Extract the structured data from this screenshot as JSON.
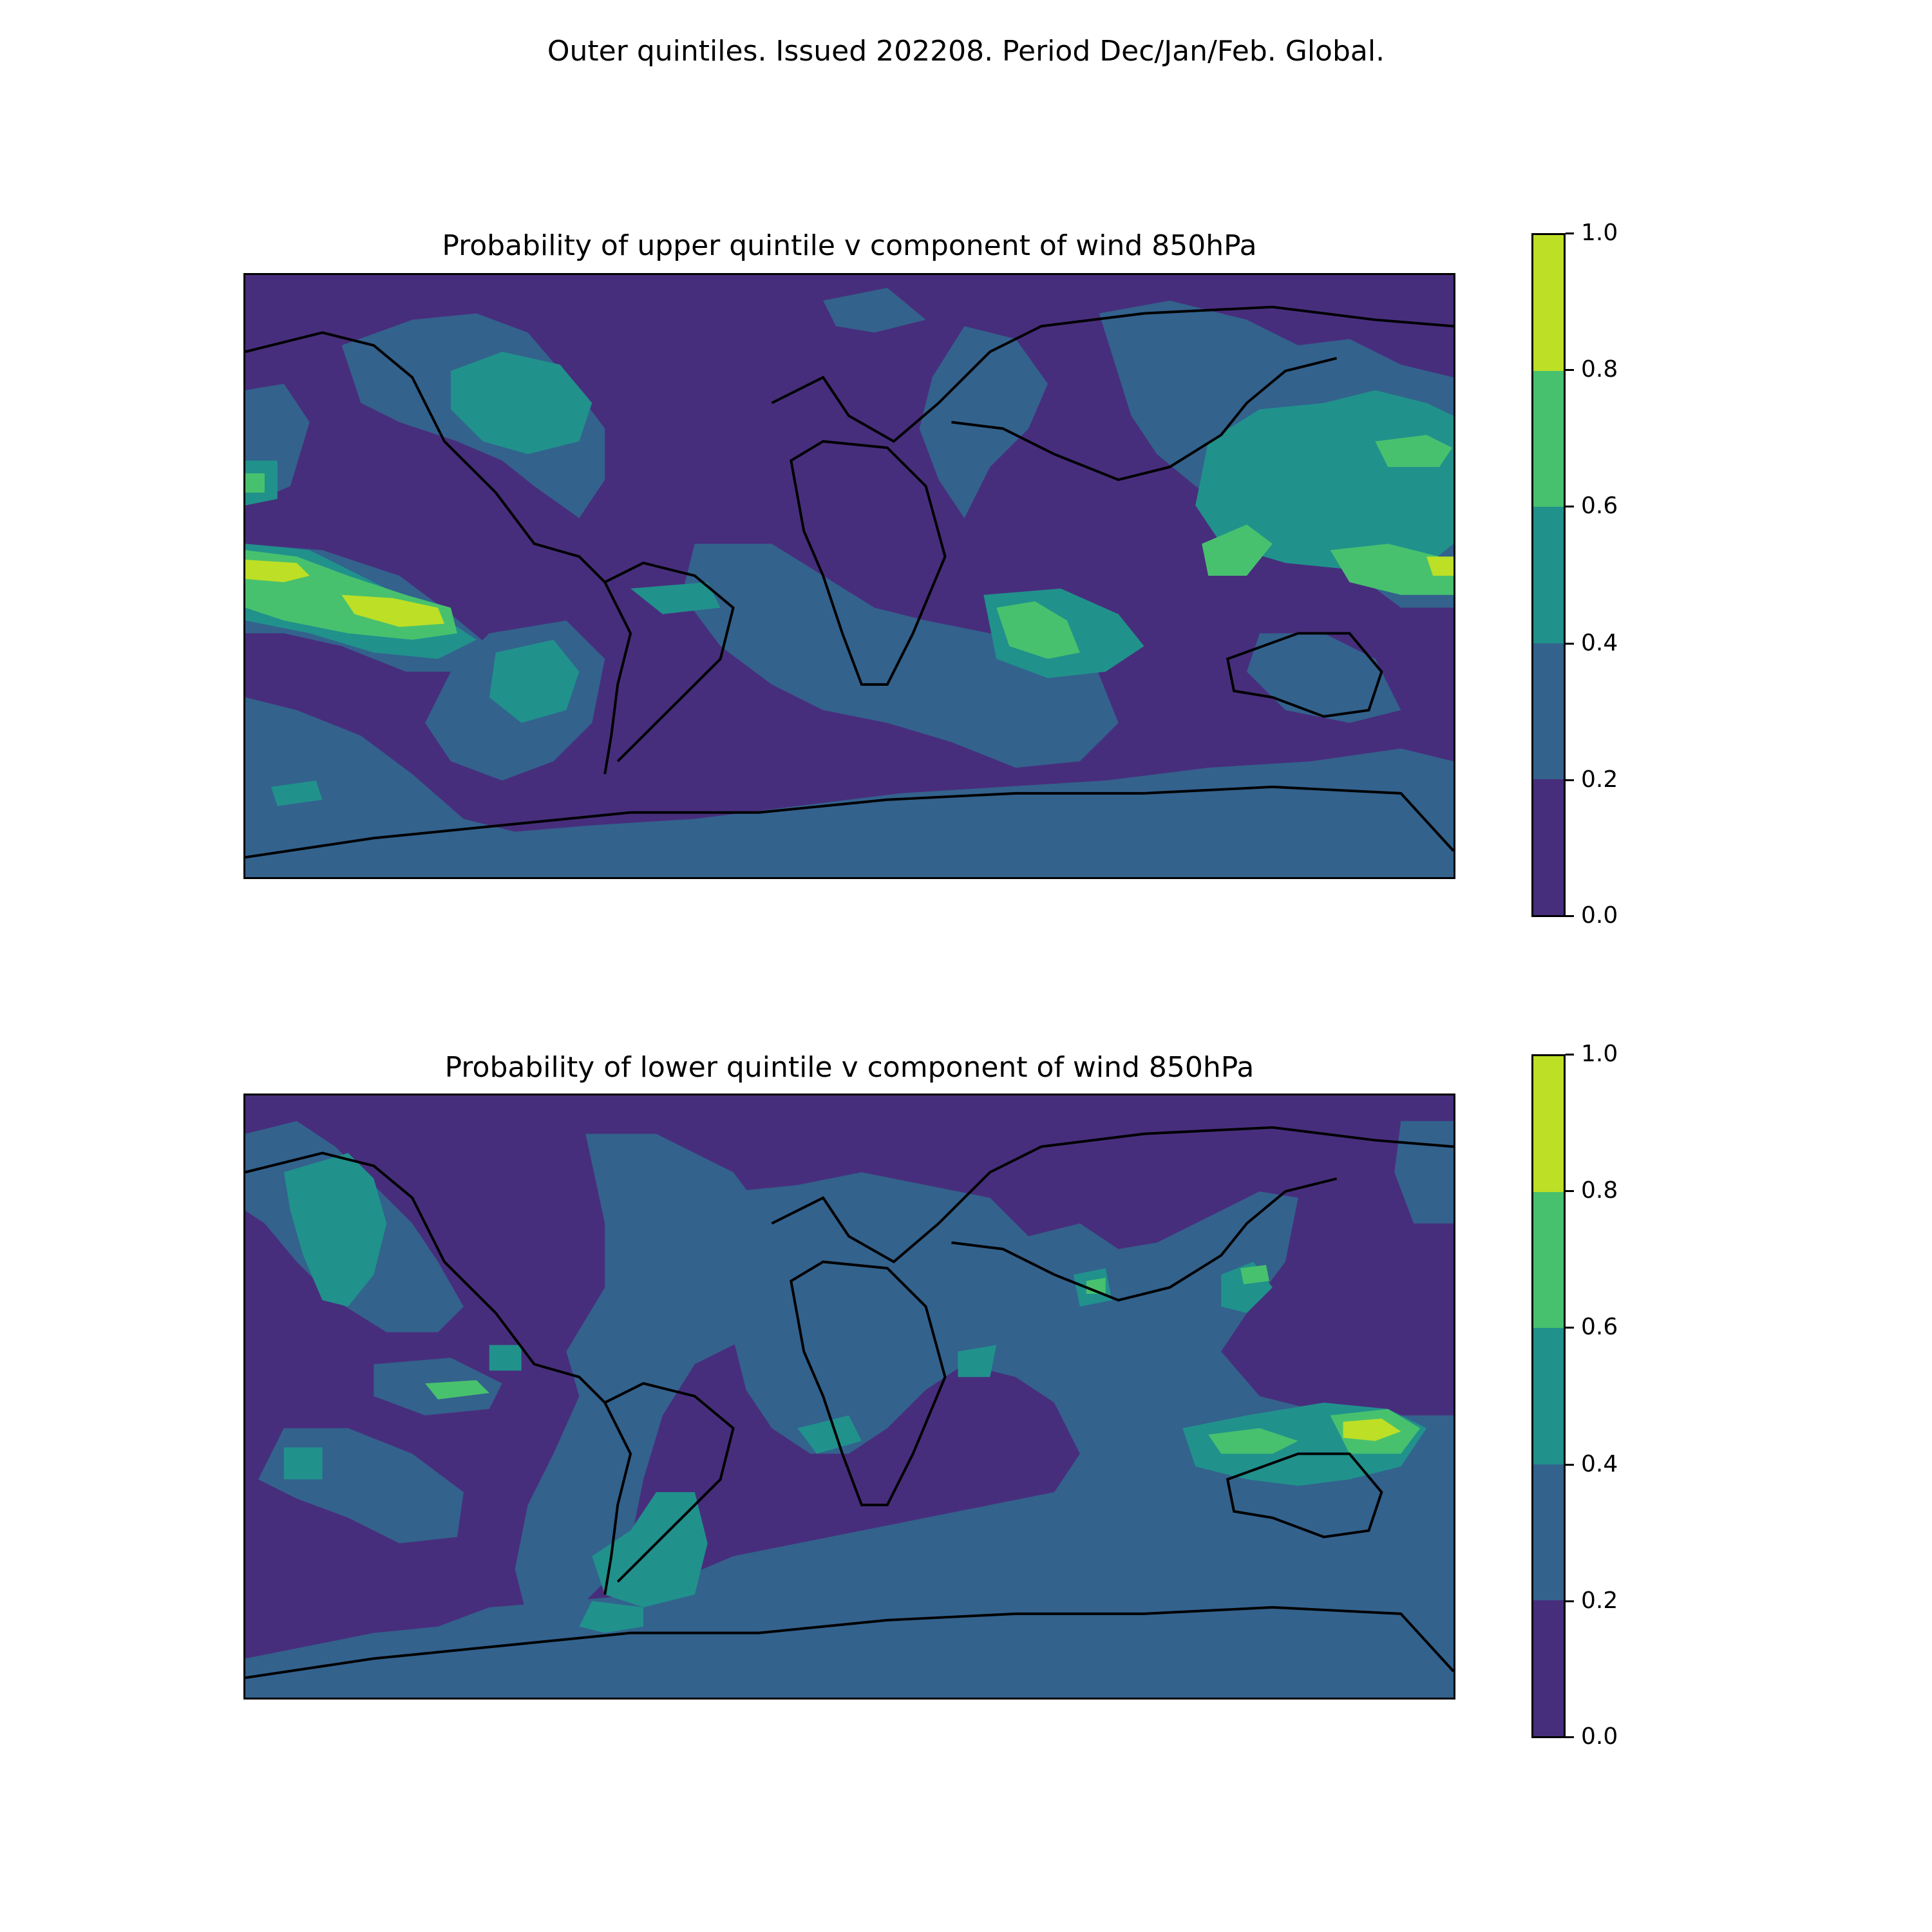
{
  "figure": {
    "suptitle": "Outer quintiles. Issued 202208. Period Dec/Jan/Feb. Global."
  },
  "panels": [
    {
      "title": "Probability of upper quintile v component of wind 850hPa"
    },
    {
      "title": "Probability of lower quintile v component of wind 850hPa"
    }
  ],
  "colorbar": {
    "ticks": [
      "1.0",
      "0.8",
      "0.6",
      "0.4",
      "0.2",
      "0.0"
    ],
    "levels": [
      {
        "range": "0.8-1.0",
        "color": "#bddf26"
      },
      {
        "range": "0.6-0.8",
        "color": "#48c16e"
      },
      {
        "range": "0.4-0.6",
        "color": "#21918c"
      },
      {
        "range": "0.2-0.4",
        "color": "#33628d"
      },
      {
        "range": "0.0-0.2",
        "color": "#472e7c"
      }
    ]
  }
}
